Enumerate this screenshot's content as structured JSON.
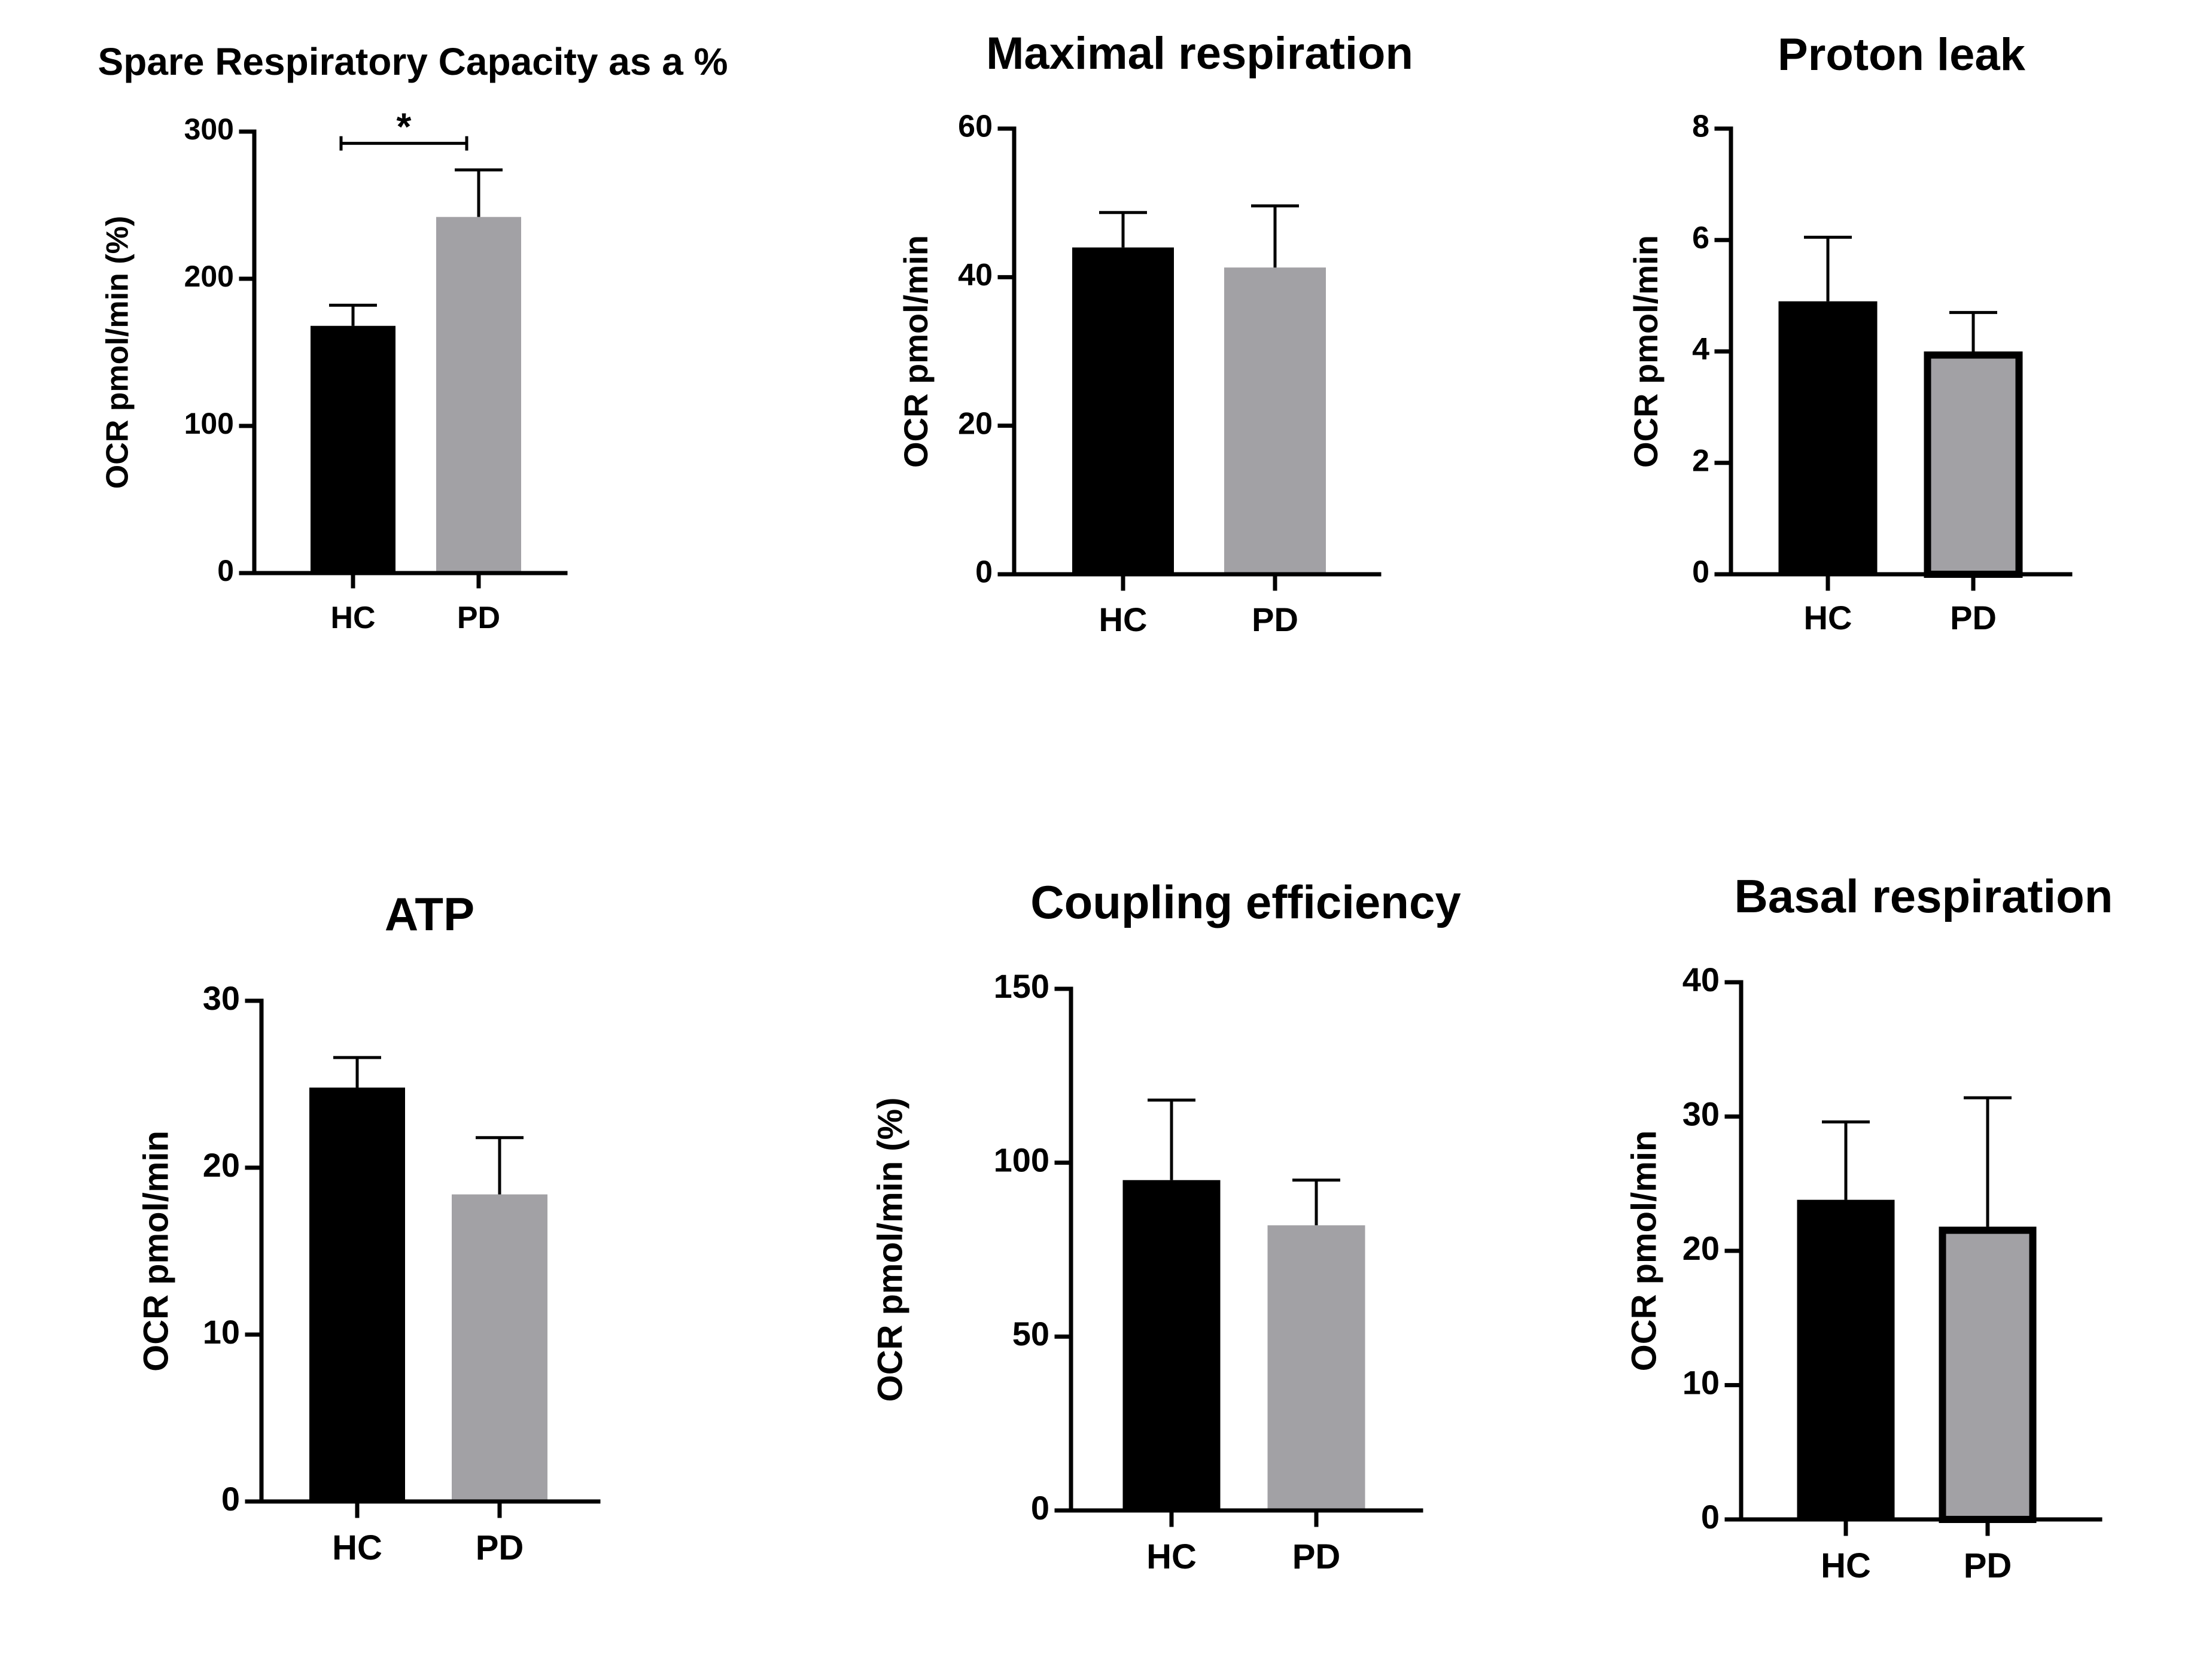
{
  "chart_data": [
    {
      "type": "bar",
      "title": "Spare Respiratory Capacity as a %",
      "xlabel": "",
      "ylabel": "OCR pmol/min (%)",
      "ylim": [
        0,
        300
      ],
      "yticks": [
        0,
        100,
        200,
        300
      ],
      "categories": [
        "HC",
        "PD"
      ],
      "values": [
        168,
        242
      ],
      "errors": [
        14,
        32
      ],
      "colors": [
        "#000000",
        "#a2a1a5"
      ],
      "outlined": [
        false,
        false
      ],
      "significance": {
        "label": "*",
        "between": [
          "HC",
          "PD"
        ],
        "y": 292
      }
    },
    {
      "type": "bar",
      "title": "Maximal respiration",
      "xlabel": "",
      "ylabel": "OCR pmol/min",
      "ylim": [
        0,
        60
      ],
      "yticks": [
        0,
        20,
        40,
        60
      ],
      "categories": [
        "HC",
        "PD"
      ],
      "values": [
        44,
        41.3
      ],
      "errors": [
        4.7,
        8.3
      ],
      "colors": [
        "#000000",
        "#a2a1a5"
      ],
      "outlined": [
        false,
        false
      ]
    },
    {
      "type": "bar",
      "title": "Proton leak",
      "xlabel": "",
      "ylabel": "OCR pmol/min",
      "ylim": [
        0,
        8
      ],
      "yticks": [
        0,
        2,
        4,
        6,
        8
      ],
      "categories": [
        "HC",
        "PD"
      ],
      "values": [
        4.9,
        4.0
      ],
      "errors": [
        1.15,
        0.7
      ],
      "colors": [
        "#000000",
        "#a2a1a5"
      ],
      "outlined": [
        false,
        true
      ]
    },
    {
      "type": "bar",
      "title": "ATP",
      "xlabel": "",
      "ylabel": "OCR pmol/min",
      "ylim": [
        0,
        30
      ],
      "yticks": [
        0,
        10,
        20,
        30
      ],
      "categories": [
        "HC",
        "PD"
      ],
      "values": [
        24.8,
        18.4
      ],
      "errors": [
        1.8,
        3.4
      ],
      "colors": [
        "#000000",
        "#a2a1a5"
      ],
      "outlined": [
        false,
        false
      ]
    },
    {
      "type": "bar",
      "title": "Coupling efficiency",
      "xlabel": "",
      "ylabel": "OCR pmol/min (%)",
      "ylim": [
        0,
        150
      ],
      "yticks": [
        0,
        50,
        100,
        150
      ],
      "categories": [
        "HC",
        "PD"
      ],
      "values": [
        95,
        82
      ],
      "errors": [
        23,
        13
      ],
      "colors": [
        "#000000",
        "#a2a1a5"
      ],
      "outlined": [
        false,
        false
      ]
    },
    {
      "type": "bar",
      "title": "Basal respiration",
      "xlabel": "",
      "ylabel": "OCR pmol/min",
      "ylim": [
        0,
        40
      ],
      "yticks": [
        0,
        10,
        20,
        30,
        40
      ],
      "categories": [
        "HC",
        "PD"
      ],
      "values": [
        23.8,
        21.8
      ],
      "errors": [
        5.8,
        9.6
      ],
      "colors": [
        "#000000",
        "#a2a1a5"
      ],
      "outlined": [
        false,
        true
      ]
    }
  ]
}
